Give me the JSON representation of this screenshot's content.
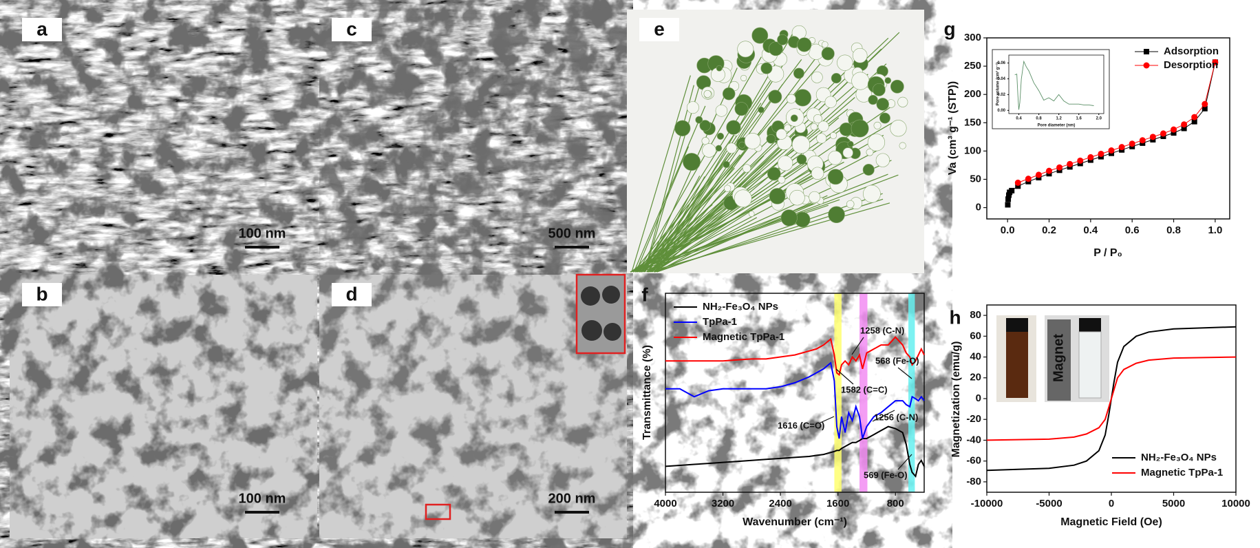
{
  "panels": [
    {
      "label": "a",
      "scale_bar": "100 nm"
    },
    {
      "label": "b",
      "scale_bar": "100 nm"
    },
    {
      "label": "c",
      "scale_bar": "500 nm"
    },
    {
      "label": "d",
      "scale_bar": "200 nm"
    },
    {
      "label": "e"
    }
  ],
  "chart_data": [
    {
      "type": "line",
      "panel_label": "g",
      "xlabel": "P / P₀",
      "ylabel": "Va (cm³ g⁻¹ (STP))",
      "xlim": [
        -0.1,
        1.07
      ],
      "ylim": [
        -20,
        300
      ],
      "xticks": [
        {
          "value": 0,
          "label": "0.0"
        },
        0.2,
        0.4,
        0.6,
        0.8,
        {
          "value": 1,
          "label": "1.0"
        }
      ],
      "yticks": [
        0,
        50,
        100,
        150,
        200,
        250,
        300
      ],
      "legend": "upper right",
      "series": [
        {
          "name": "Adsorption",
          "color": "#000000",
          "marker": "square",
          "x": [
            0.001,
            0.003,
            0.006,
            0.01,
            0.02,
            0.05,
            0.1,
            0.15,
            0.2,
            0.25,
            0.3,
            0.35,
            0.4,
            0.45,
            0.5,
            0.55,
            0.6,
            0.65,
            0.7,
            0.75,
            0.8,
            0.85,
            0.9,
            0.95,
            1.0
          ],
          "values": [
            5,
            15,
            22,
            27,
            30,
            38,
            46,
            53,
            60,
            66,
            72,
            78,
            84,
            90,
            96,
            102,
            108,
            114,
            120,
            126,
            132,
            140,
            152,
            175,
            257
          ]
        },
        {
          "name": "Desorption",
          "color": "#ff0000",
          "marker": "circle",
          "x": [
            0.05,
            0.1,
            0.15,
            0.2,
            0.25,
            0.3,
            0.35,
            0.4,
            0.45,
            0.5,
            0.55,
            0.6,
            0.65,
            0.7,
            0.75,
            0.8,
            0.85,
            0.9,
            0.95,
            1.0
          ],
          "values": [
            44,
            51,
            58,
            65,
            71,
            77,
            83,
            89,
            95,
            101,
            107,
            113,
            119,
            125,
            131,
            138,
            147,
            160,
            183,
            257
          ]
        }
      ]
    },
    {
      "type": "line",
      "xlabel": "Pore diameter (nm)",
      "ylabel": "Pore volume (cm³ g⁻¹)",
      "xlim": [
        0.2,
        2.1
      ],
      "ylim": [
        -0.004,
        0.07
      ],
      "xticks": [
        0.4,
        0.8,
        1.2,
        1.6,
        {
          "value": 2,
          "label": "2.0"
        }
      ],
      "yticks": [
        {
          "value": 0,
          "label": "0.00"
        },
        {
          "value": 0.02,
          "label": "0.02"
        },
        {
          "value": 0.04,
          "label": "0.04"
        },
        {
          "value": 0.06,
          "label": "0.06"
        }
      ],
      "series": [
        {
          "color": "#5a8f66",
          "x": [
            0.32,
            0.36,
            0.38,
            0.4,
            0.42,
            0.45,
            0.5,
            0.55,
            0.6,
            0.7,
            0.8,
            0.9,
            1.0,
            1.1,
            1.2,
            1.3,
            1.4,
            1.5,
            1.6,
            1.7,
            1.8,
            1.9
          ],
          "values": [
            0.045,
            0.046,
            0.02,
            0.001,
            0.01,
            0.04,
            0.062,
            0.055,
            0.05,
            0.035,
            0.025,
            0.013,
            0.016,
            0.012,
            0.02,
            0.012,
            0.008,
            0.008,
            0.008,
            0.007,
            0.007,
            0.006
          ]
        }
      ]
    },
    {
      "type": "line",
      "panel_label": "f",
      "xlabel": "Wavenumber (cm⁻¹)",
      "ylabel": "Transmittance (%)",
      "xlim": [
        4000,
        400
      ],
      "ylim": [
        0,
        100
      ],
      "xticks": [
        4000,
        3200,
        2400,
        1600,
        800
      ],
      "legend": "upper left",
      "bands": [
        {
          "from": 1650,
          "to": 1550,
          "color": "#ffff70"
        },
        {
          "from": 1300,
          "to": 1190,
          "color": "#f28cf2"
        },
        {
          "from": 620,
          "to": 530,
          "color": "#66f0f0"
        }
      ],
      "x": [
        4000,
        3800,
        3600,
        3400,
        3200,
        3000,
        2800,
        2600,
        2400,
        2200,
        2000,
        1900,
        1800,
        1700,
        1650,
        1616,
        1582,
        1550,
        1500,
        1450,
        1400,
        1350,
        1300,
        1258,
        1200,
        1100,
        1000,
        900,
        800,
        700,
        650,
        600,
        568,
        520,
        480,
        440,
        400
      ],
      "series": [
        {
          "name": "NH₂-Fe₃O₄ NPs",
          "color": "#000000",
          "values": [
            13,
            13.5,
            14,
            14.5,
            15,
            15.5,
            16,
            16.5,
            17,
            17.5,
            18,
            18.5,
            19,
            20,
            20.5,
            21,
            21,
            22,
            23,
            24,
            25,
            25,
            26,
            27,
            27,
            29,
            31,
            33,
            32,
            30,
            24,
            14,
            10,
            8,
            14,
            16,
            13
          ]
        },
        {
          "name": "TpPa-1",
          "color": "#0000ff",
          "values": [
            52,
            52,
            48,
            51,
            52,
            52,
            52,
            52,
            53,
            55,
            58,
            60,
            62,
            65,
            56,
            33,
            27,
            38,
            30,
            40,
            36,
            43,
            38,
            27,
            33,
            38,
            40,
            43,
            46,
            46,
            44,
            43,
            48,
            47,
            46,
            48,
            46
          ]
        },
        {
          "name": "Magnetic TpPa-1",
          "color": "#ff0000",
          "values": [
            66,
            66,
            66,
            66,
            66,
            66.5,
            67,
            67,
            68,
            69,
            71,
            72,
            74,
            77,
            69,
            60,
            59,
            64,
            66,
            64,
            68,
            66,
            69,
            62,
            70,
            72,
            74,
            74,
            78,
            74,
            70,
            68,
            64,
            66,
            69,
            72,
            69
          ]
        }
      ],
      "annotations": [
        "1258 (C-N)",
        "568 (Fe-O)",
        "1582 (C=C)",
        "1616 (C=O)",
        "1256 (C-N)",
        "569 (Fe-O)"
      ]
    },
    {
      "type": "line",
      "panel_label": "h",
      "xlabel": "Magnetic Field (Oe)",
      "ylabel": "Magnetization (emu/g)",
      "xlim": [
        -10000,
        10000
      ],
      "ylim": [
        -90,
        90
      ],
      "xticks": [
        -10000,
        -5000,
        0,
        5000,
        10000
      ],
      "yticks": [
        -80,
        -60,
        -40,
        -20,
        0,
        20,
        40,
        60,
        80
      ],
      "legend": "lower right",
      "x": [
        -10000,
        -5000,
        -3000,
        -2000,
        -1000,
        -500,
        -200,
        0,
        200,
        500,
        1000,
        2000,
        3000,
        5000,
        10000
      ],
      "series": [
        {
          "name": "NH₂-Fe₃O₄ NPs",
          "color": "#000000",
          "values": [
            -69,
            -67,
            -64,
            -60,
            -50,
            -35,
            -15,
            0,
            15,
            35,
            50,
            60,
            64,
            67,
            69
          ]
        },
        {
          "name": "Magnetic TpPa-1",
          "color": "#ff0000",
          "values": [
            -40,
            -39,
            -37,
            -34,
            -28,
            -20,
            -8,
            0,
            8,
            20,
            28,
            34,
            37,
            39,
            40
          ]
        }
      ],
      "annotations": [
        "Magnet"
      ]
    }
  ]
}
